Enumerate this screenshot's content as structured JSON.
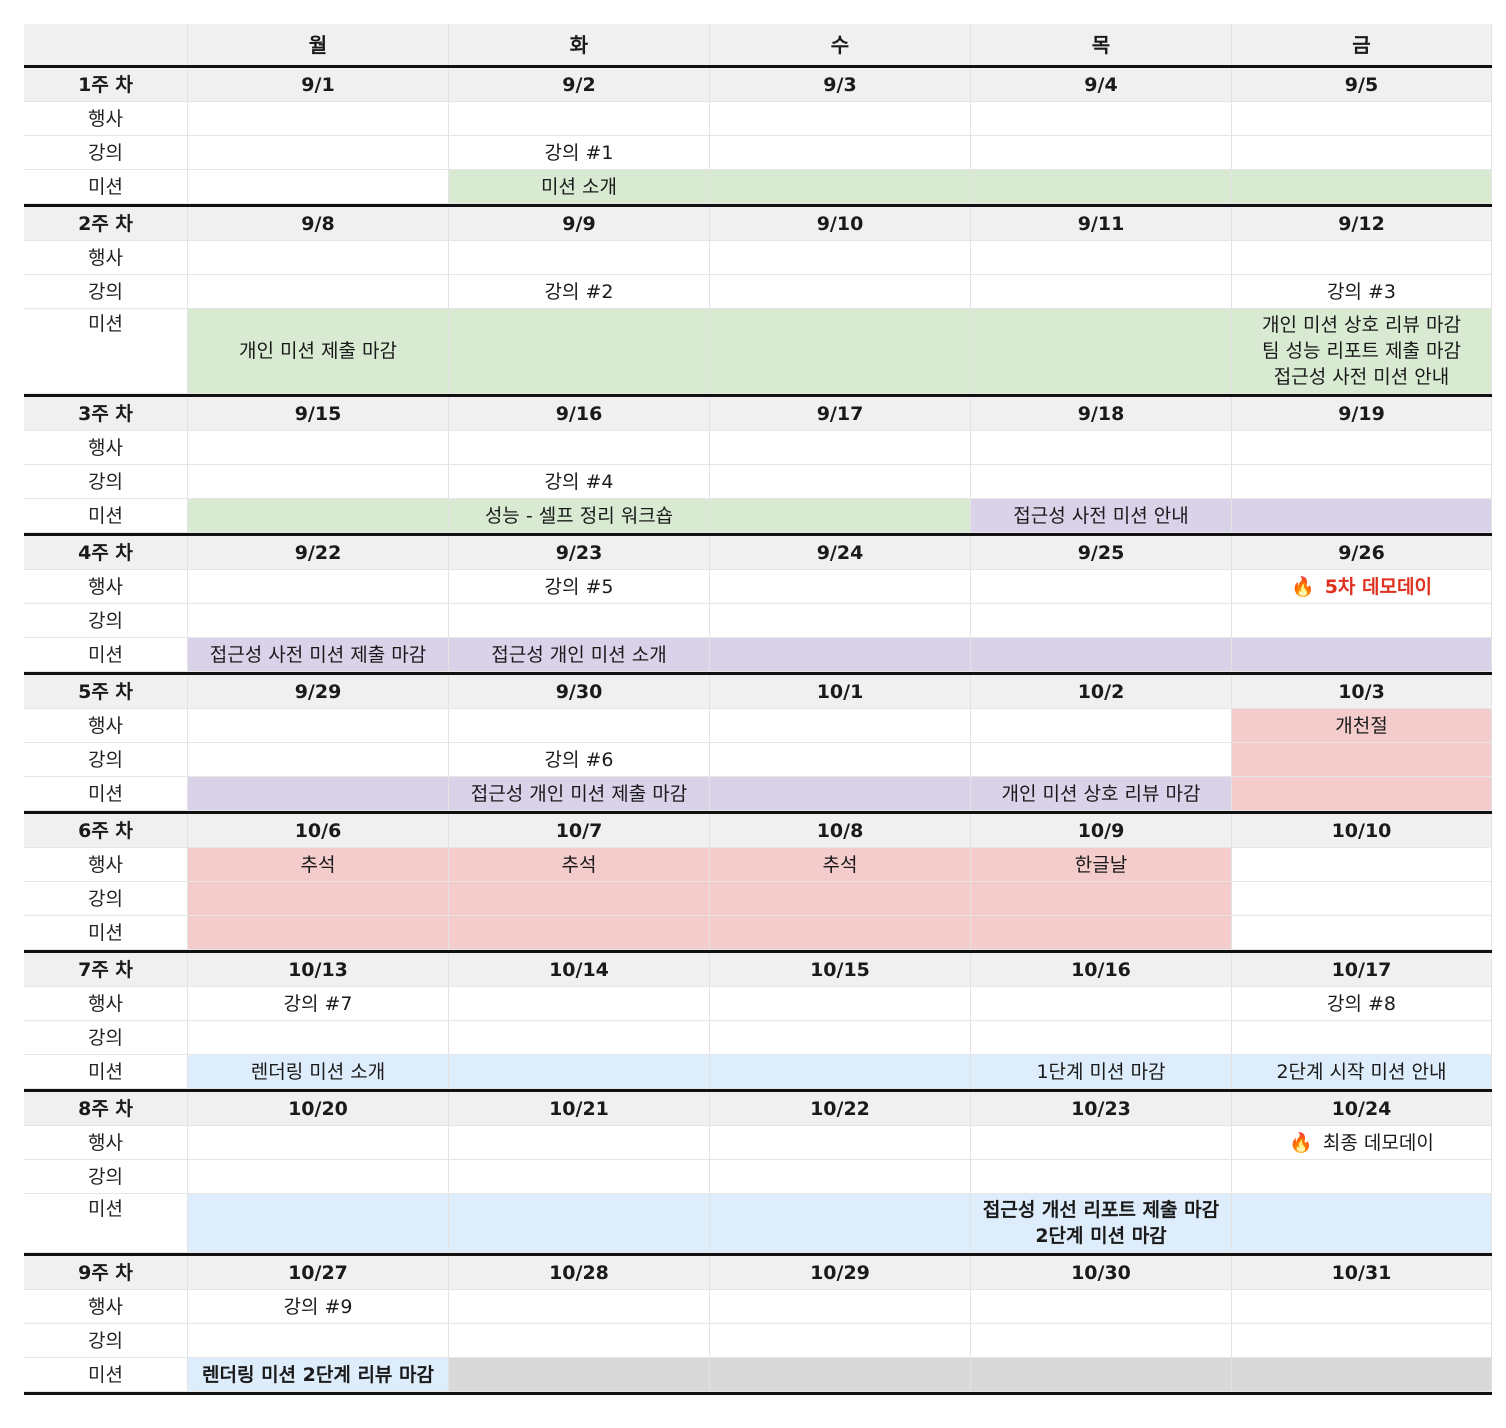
{
  "days": [
    "월",
    "화",
    "수",
    "목",
    "금"
  ],
  "row_labels": {
    "event": "행사",
    "lecture": "강의",
    "mission": "미션"
  },
  "fire_icon": "🔥",
  "weeks": [
    {
      "label": "1주 차",
      "dates": [
        "9/1",
        "9/2",
        "9/3",
        "9/4",
        "9/5"
      ],
      "event": [
        "",
        "",
        "",
        "",
        ""
      ],
      "lecture": [
        "",
        "강의 #1",
        "",
        "",
        ""
      ],
      "mission": [
        "",
        "미션 소개",
        "",
        "",
        ""
      ]
    },
    {
      "label": "2주 차",
      "dates": [
        "9/8",
        "9/9",
        "9/10",
        "9/11",
        "9/12"
      ],
      "event": [
        "",
        "",
        "",
        "",
        ""
      ],
      "lecture": [
        "",
        "강의 #2",
        "",
        "",
        "강의 #3"
      ],
      "mission": [
        "개인 미션 제출 마감",
        "",
        "",
        "",
        ""
      ],
      "mission_fri": [
        "개인 미션 상호 리뷰 마감",
        "팀 성능 리포트 제출 마감",
        "접근성 사전 미션 안내"
      ]
    },
    {
      "label": "3주 차",
      "dates": [
        "9/15",
        "9/16",
        "9/17",
        "9/18",
        "9/19"
      ],
      "event": [
        "",
        "",
        "",
        "",
        ""
      ],
      "lecture": [
        "",
        "강의 #4",
        "",
        "",
        ""
      ],
      "mission": [
        "",
        "성능 - 셀프 정리 워크숍",
        "",
        "접근성 사전 미션 안내",
        ""
      ]
    },
    {
      "label": "4주 차",
      "dates": [
        "9/22",
        "9/23",
        "9/24",
        "9/25",
        "9/26"
      ],
      "event": [
        "",
        "강의 #5",
        "",
        "",
        "5차 데모데이"
      ],
      "lecture": [
        "",
        "",
        "",
        "",
        ""
      ],
      "mission": [
        "접근성 사전 미션 제출 마감",
        "접근성 개인 미션 소개",
        "",
        "",
        ""
      ]
    },
    {
      "label": "5주 차",
      "dates": [
        "9/29",
        "9/30",
        "10/1",
        "10/2",
        "10/3"
      ],
      "event": [
        "",
        "",
        "",
        "",
        "개천절"
      ],
      "lecture": [
        "",
        "강의 #6",
        "",
        "",
        ""
      ],
      "mission": [
        "",
        "접근성 개인 미션 제출 마감",
        "",
        "개인 미션 상호 리뷰 마감",
        ""
      ]
    },
    {
      "label": "6주 차",
      "dates": [
        "10/6",
        "10/7",
        "10/8",
        "10/9",
        "10/10"
      ],
      "event": [
        "추석",
        "추석",
        "추석",
        "한글날",
        ""
      ],
      "lecture": [
        "",
        "",
        "",
        "",
        ""
      ],
      "mission": [
        "",
        "",
        "",
        "",
        ""
      ]
    },
    {
      "label": "7주 차",
      "dates": [
        "10/13",
        "10/14",
        "10/15",
        "10/16",
        "10/17"
      ],
      "event": [
        "강의 #7",
        "",
        "",
        "",
        "강의 #8"
      ],
      "lecture": [
        "",
        "",
        "",
        "",
        ""
      ],
      "mission": [
        "렌더링 미션 소개",
        "",
        "",
        "1단계 미션 마감",
        "2단계 시작 미션 안내"
      ]
    },
    {
      "label": "8주 차",
      "dates": [
        "10/20",
        "10/21",
        "10/22",
        "10/23",
        "10/24"
      ],
      "event": [
        "",
        "",
        "",
        "",
        "최종 데모데이"
      ],
      "lecture": [
        "",
        "",
        "",
        "",
        ""
      ],
      "mission": [
        "",
        "",
        "",
        "",
        ""
      ],
      "mission_thu": [
        "접근성 개선 리포트 제출 마감",
        "2단계 미션 마감"
      ]
    },
    {
      "label": "9주 차",
      "dates": [
        "10/27",
        "10/28",
        "10/29",
        "10/30",
        "10/31"
      ],
      "event": [
        "강의 #9",
        "",
        "",
        "",
        ""
      ],
      "lecture": [
        "",
        "",
        "",
        "",
        ""
      ],
      "mission": [
        "렌더링 미션 2단계 리뷰 마감",
        "",
        "",
        "",
        ""
      ]
    }
  ],
  "colors": {
    "green": "#d9ead3",
    "purple": "#d9d2e9",
    "pink": "#f4cccc",
    "blue": "#deedfb",
    "gray": "#d9d9d9",
    "accent_red": "#e0311f"
  }
}
